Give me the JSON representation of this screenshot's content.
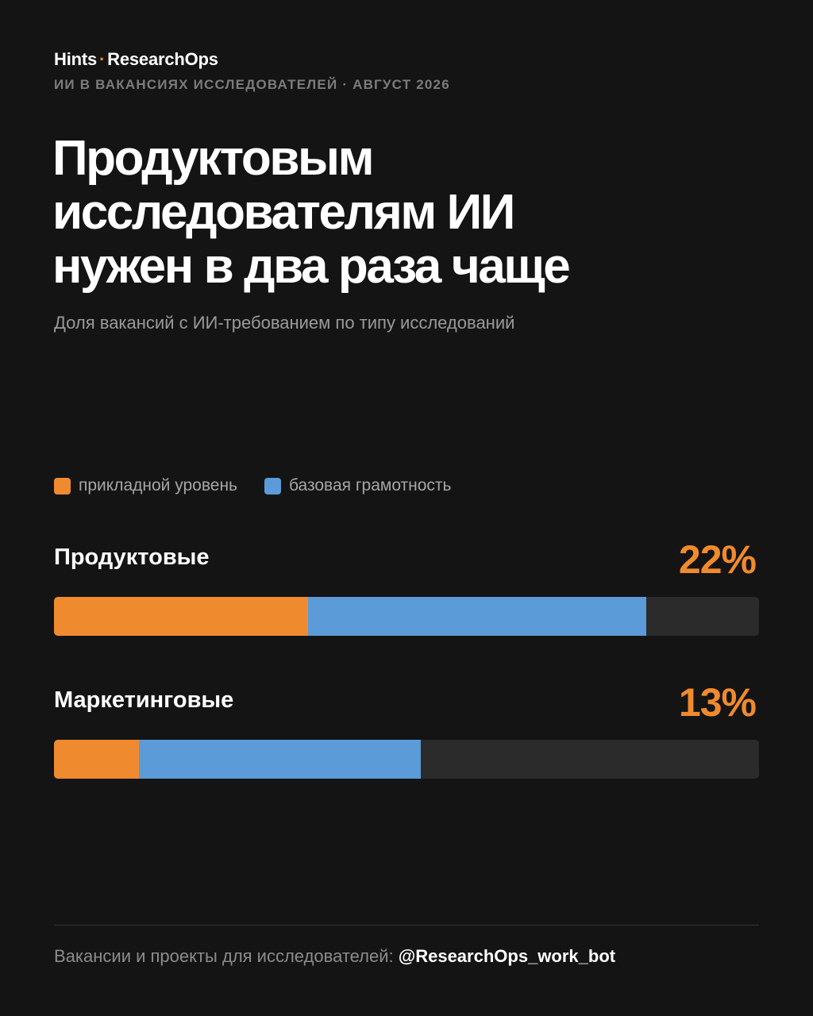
{
  "header": {
    "brand_left": "Hints",
    "brand_sep": "·",
    "brand_right": "ResearchOps",
    "kicker": "ИИ В ВАКАНСИЯХ ИССЛЕДОВАТЕЛЕЙ · АВГУСТ 2026"
  },
  "footer": {
    "text": "Вакансии и проекты для исследователей:",
    "handle": "@ResearchOps_work_bot"
  },
  "colors": {
    "background": "#141414",
    "accent_orange": "#f08a2e",
    "accent_blue": "#5b9bd8",
    "track": "#2b2b2b"
  },
  "chart_data": {
    "type": "bar",
    "orientation": "horizontal",
    "stacked": true,
    "title_lines": [
      "Продуктовым",
      "исследователям ИИ",
      "нужен в два раза чаще"
    ],
    "subtitle": "Доля вакансий с ИИ-требованием по типу исследований",
    "categories": [
      "Продуктовые",
      "Маркетинговые"
    ],
    "value_labels": [
      "22%",
      "13%"
    ],
    "series": [
      {
        "name": "прикладной уровень",
        "color": "#f08a2e",
        "values": [
          36,
          12
        ]
      },
      {
        "name": "базовая грамотность",
        "color": "#5b9bd8",
        "values": [
          48,
          40
        ]
      }
    ],
    "xlim": [
      0,
      100
    ],
    "legend": "top-left",
    "grid": false
  }
}
